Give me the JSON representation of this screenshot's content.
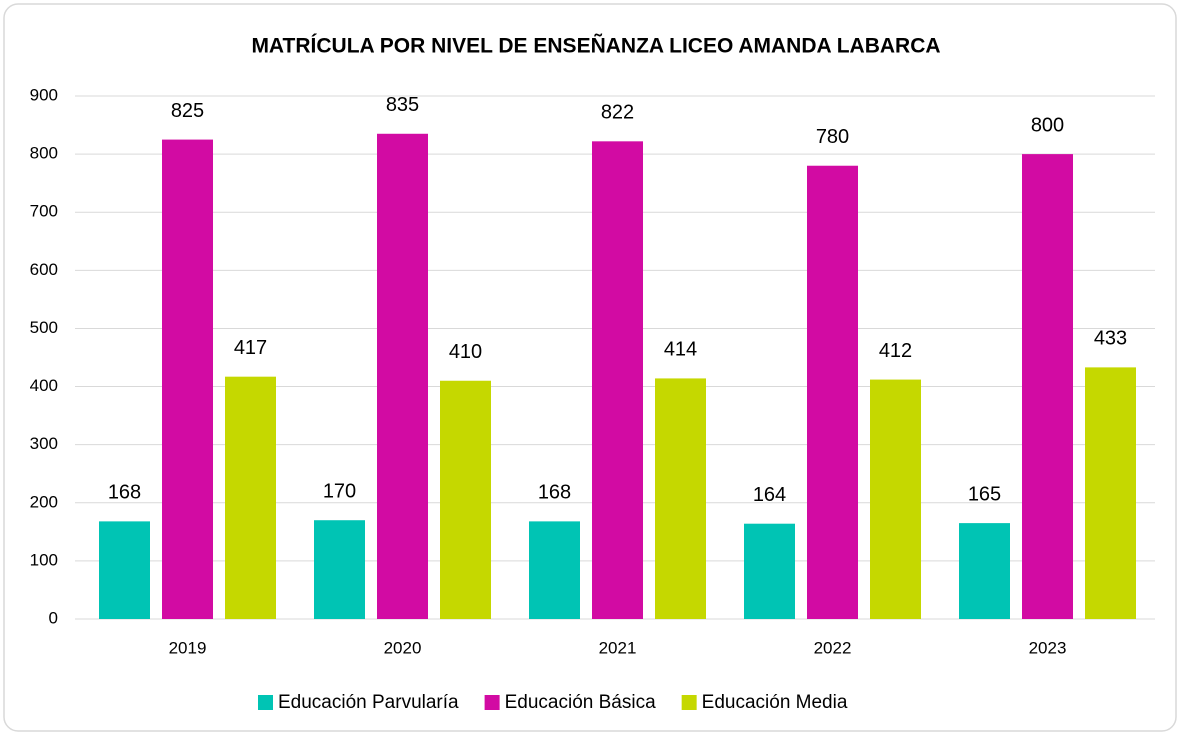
{
  "chart_data": {
    "type": "bar",
    "title": "MATRÍCULA POR NIVEL DE ENSEÑANZA LICEO AMANDA LABARCA",
    "categories": [
      "2019",
      "2020",
      "2021",
      "2022",
      "2023"
    ],
    "series": [
      {
        "name": "Educación Parvularía",
        "color": "#00c4b4",
        "values": [
          168,
          170,
          168,
          164,
          165
        ]
      },
      {
        "name": "Educación Básica",
        "color": "#d20ba3",
        "values": [
          825,
          835,
          822,
          780,
          800
        ]
      },
      {
        "name": "Educación Media",
        "color": "#c5d800",
        "values": [
          417,
          410,
          414,
          412,
          433
        ]
      }
    ],
    "ylim": [
      0,
      900
    ],
    "yticks": [
      0,
      100,
      200,
      300,
      400,
      500,
      600,
      700,
      800,
      900
    ],
    "grid": true,
    "legend": "bottom"
  }
}
